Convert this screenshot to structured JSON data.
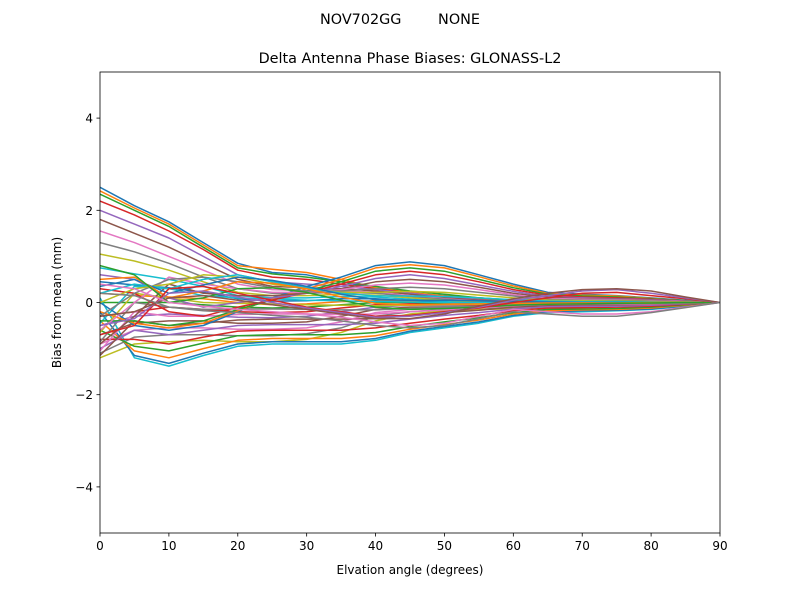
{
  "chart_data": {
    "type": "line",
    "suptitle": "NOV702GG        NONE",
    "title": "Delta Antenna Phase Biases: GLONASS-L2",
    "xlabel": "Elvation angle (degrees)",
    "ylabel": "Bias from mean (mm)",
    "xlim": [
      0,
      90
    ],
    "ylim": [
      -5,
      5
    ],
    "xticks": [
      0,
      10,
      20,
      30,
      40,
      50,
      60,
      70,
      80,
      90
    ],
    "yticks": [
      -4,
      -2,
      0,
      2,
      4
    ],
    "xtick_labels": [
      "0",
      "10",
      "20",
      "30",
      "40",
      "50",
      "60",
      "70",
      "80",
      "90"
    ],
    "ytick_labels": [
      "−4",
      "−2",
      "0",
      "2",
      "4"
    ],
    "grid": false,
    "legend": "none",
    "colors": [
      "#1f77b4",
      "#ff7f0e",
      "#2ca02c",
      "#d62728",
      "#9467bd",
      "#8c564b",
      "#e377c2",
      "#7f7f7f",
      "#bcbd22",
      "#17becf"
    ],
    "x": [
      0,
      5,
      10,
      15,
      20,
      25,
      30,
      35,
      40,
      45,
      50,
      55,
      60,
      65,
      70,
      75,
      80,
      85,
      90
    ],
    "series": [
      {
        "values": [
          2.5,
          2.1,
          1.75,
          1.3,
          0.85,
          0.65,
          0.6,
          0.45,
          0.3,
          0.2,
          0.15,
          0.1,
          0.05,
          0.05,
          0.1,
          0.12,
          0.08,
          0.04,
          0
        ]
      },
      {
        "values": [
          2.42,
          2.05,
          1.7,
          1.25,
          0.8,
          0.72,
          0.65,
          0.5,
          0.32,
          0.22,
          0.14,
          0.08,
          0.04,
          0.04,
          0.08,
          0.1,
          0.08,
          0.04,
          0
        ]
      },
      {
        "values": [
          2.35,
          2.0,
          1.65,
          1.2,
          0.75,
          0.62,
          0.55,
          0.45,
          0.35,
          0.25,
          0.18,
          0.1,
          0.05,
          0.04,
          0.06,
          0.08,
          0.06,
          0.03,
          0
        ]
      },
      {
        "values": [
          2.2,
          1.9,
          1.55,
          1.15,
          0.7,
          0.55,
          0.5,
          0.4,
          0.3,
          0.2,
          0.12,
          0.06,
          0.02,
          0.02,
          0.05,
          0.07,
          0.05,
          0.03,
          0
        ]
      },
      {
        "values": [
          2.0,
          1.7,
          1.4,
          1.0,
          0.6,
          0.45,
          0.4,
          0.35,
          0.28,
          0.2,
          0.12,
          0.06,
          0.02,
          0.0,
          0.03,
          0.05,
          0.04,
          0.02,
          0
        ]
      },
      {
        "values": [
          1.8,
          1.5,
          1.2,
          0.85,
          0.5,
          0.35,
          0.32,
          0.3,
          0.25,
          0.18,
          0.1,
          0.05,
          0.01,
          0.0,
          0.02,
          0.04,
          0.03,
          0.02,
          0
        ]
      },
      {
        "values": [
          1.55,
          1.3,
          1.0,
          0.7,
          0.4,
          0.28,
          0.26,
          0.26,
          0.22,
          0.15,
          0.08,
          0.03,
          0.0,
          -0.01,
          0.01,
          0.03,
          0.02,
          0.01,
          0
        ]
      },
      {
        "values": [
          1.3,
          1.1,
          0.85,
          0.55,
          0.3,
          0.2,
          0.2,
          0.22,
          0.2,
          0.13,
          0.07,
          0.02,
          -0.01,
          -0.02,
          0.0,
          0.02,
          0.02,
          0.01,
          0
        ]
      },
      {
        "values": [
          1.05,
          0.9,
          0.7,
          0.45,
          0.22,
          0.15,
          0.15,
          0.18,
          0.16,
          0.1,
          0.05,
          0.0,
          -0.02,
          -0.03,
          -0.01,
          0.01,
          0.01,
          0.0,
          0
        ]
      },
      {
        "values": [
          0.75,
          0.62,
          0.5,
          0.35,
          0.15,
          0.1,
          0.1,
          0.13,
          0.12,
          0.07,
          0.02,
          -0.02,
          -0.04,
          -0.04,
          -0.02,
          0.0,
          0.0,
          0.0,
          0
        ]
      },
      {
        "values": [
          0.45,
          0.38,
          0.32,
          0.22,
          0.08,
          0.03,
          0.04,
          0.08,
          0.08,
          0.04,
          0.0,
          -0.04,
          -0.05,
          -0.05,
          -0.03,
          -0.01,
          0.0,
          0.0,
          0
        ]
      },
      {
        "values": [
          0.2,
          0.15,
          0.12,
          0.08,
          0.0,
          -0.05,
          -0.03,
          0.02,
          0.04,
          0.02,
          -0.02,
          -0.05,
          -0.06,
          -0.06,
          -0.04,
          -0.02,
          -0.01,
          0.0,
          0
        ]
      },
      {
        "values": [
          0.0,
          0.0,
          0.0,
          -0.05,
          -0.1,
          -0.12,
          -0.1,
          -0.05,
          0.0,
          0.0,
          -0.03,
          -0.06,
          -0.07,
          -0.07,
          -0.05,
          -0.03,
          -0.02,
          -0.01,
          0
        ]
      },
      {
        "values": [
          -0.3,
          -0.2,
          -0.1,
          -0.15,
          -0.2,
          -0.22,
          -0.2,
          -0.12,
          -0.05,
          -0.03,
          -0.05,
          -0.07,
          -0.08,
          -0.08,
          -0.06,
          -0.04,
          -0.02,
          -0.01,
          0
        ]
      },
      {
        "values": [
          -0.5,
          -0.3,
          -0.25,
          -0.28,
          -0.32,
          -0.33,
          -0.3,
          -0.2,
          -0.1,
          -0.06,
          -0.07,
          -0.09,
          -0.1,
          -0.09,
          -0.07,
          -0.05,
          -0.03,
          -0.01,
          0
        ]
      },
      {
        "values": [
          -0.7,
          -0.45,
          -0.4,
          -0.4,
          -0.45,
          -0.45,
          -0.42,
          -0.3,
          -0.15,
          -0.1,
          -0.1,
          -0.11,
          -0.11,
          -0.1,
          -0.08,
          -0.06,
          -0.04,
          -0.02,
          0
        ]
      },
      {
        "values": [
          -0.9,
          -0.6,
          -0.55,
          -0.55,
          -0.58,
          -0.58,
          -0.55,
          -0.42,
          -0.22,
          -0.15,
          -0.12,
          -0.12,
          -0.12,
          -0.11,
          -0.09,
          -0.07,
          -0.05,
          -0.02,
          0
        ]
      },
      {
        "values": [
          -1.1,
          -0.75,
          -0.7,
          -0.7,
          -0.72,
          -0.72,
          -0.68,
          -0.55,
          -0.3,
          -0.2,
          -0.15,
          -0.13,
          -0.13,
          -0.12,
          -0.1,
          -0.08,
          -0.05,
          -0.02,
          0
        ]
      },
      {
        "values": [
          -1.2,
          -0.9,
          -0.85,
          -0.82,
          -0.85,
          -0.85,
          -0.8,
          -0.65,
          -0.4,
          -0.25,
          -0.18,
          -0.15,
          -0.14,
          -0.13,
          -0.11,
          -0.09,
          -0.06,
          -0.03,
          0
        ]
      },
      {
        "values": [
          0.1,
          -1.2,
          -1.38,
          -1.15,
          -0.95,
          -0.9,
          -0.9,
          -0.9,
          -0.82,
          -0.65,
          -0.55,
          -0.45,
          -0.3,
          -0.22,
          -0.2,
          -0.18,
          -0.15,
          -0.08,
          0
        ]
      },
      {
        "values": [
          -0.2,
          -1.15,
          -1.32,
          -1.1,
          -0.9,
          -0.85,
          -0.85,
          -0.85,
          -0.78,
          -0.62,
          -0.52,
          -0.42,
          -0.28,
          -0.2,
          -0.18,
          -0.17,
          -0.14,
          -0.07,
          0
        ]
      },
      {
        "values": [
          -0.4,
          -1.05,
          -1.2,
          -1.0,
          -0.82,
          -0.78,
          -0.78,
          -0.78,
          -0.72,
          -0.58,
          -0.48,
          -0.38,
          -0.25,
          -0.18,
          -0.16,
          -0.15,
          -0.12,
          -0.06,
          0
        ]
      },
      {
        "values": [
          -0.6,
          -0.95,
          -1.05,
          -0.88,
          -0.72,
          -0.7,
          -0.7,
          -0.7,
          -0.65,
          -0.52,
          -0.42,
          -0.33,
          -0.22,
          -0.15,
          -0.14,
          -0.13,
          -0.1,
          -0.05,
          0
        ]
      },
      {
        "values": [
          -0.8,
          -0.8,
          -0.9,
          -0.75,
          -0.62,
          -0.6,
          -0.6,
          -0.6,
          -0.55,
          -0.45,
          -0.36,
          -0.28,
          -0.18,
          -0.12,
          -0.11,
          -0.1,
          -0.08,
          -0.04,
          0
        ]
      },
      {
        "values": [
          -1.0,
          -0.6,
          -0.7,
          -0.6,
          -0.5,
          -0.48,
          -0.48,
          -0.48,
          -0.45,
          -0.36,
          -0.28,
          -0.22,
          -0.14,
          -0.09,
          -0.08,
          -0.08,
          -0.06,
          -0.03,
          0
        ]
      },
      {
        "values": [
          -1.15,
          -0.4,
          -0.5,
          -0.45,
          -0.38,
          -0.36,
          -0.36,
          -0.36,
          -0.35,
          -0.28,
          -0.22,
          -0.17,
          -0.1,
          -0.06,
          -0.05,
          -0.05,
          -0.04,
          -0.02,
          0
        ]
      },
      {
        "values": [
          -1.05,
          -0.2,
          -0.3,
          -0.3,
          -0.26,
          -0.25,
          -0.25,
          -0.26,
          -0.25,
          -0.2,
          -0.16,
          -0.12,
          -0.07,
          -0.04,
          -0.03,
          -0.03,
          -0.03,
          -0.01,
          0
        ]
      },
      {
        "values": [
          -0.85,
          0.0,
          -0.1,
          -0.15,
          -0.14,
          -0.14,
          -0.15,
          -0.16,
          -0.16,
          -0.13,
          -0.1,
          -0.08,
          -0.05,
          -0.02,
          -0.02,
          -0.02,
          -0.02,
          -0.01,
          0
        ]
      },
      {
        "values": [
          -0.65,
          0.2,
          0.1,
          0.0,
          -0.02,
          -0.03,
          -0.05,
          -0.06,
          -0.07,
          -0.06,
          -0.05,
          -0.04,
          -0.02,
          -0.01,
          -0.01,
          -0.01,
          -0.01,
          0.0,
          0
        ]
      },
      {
        "values": [
          -0.45,
          0.35,
          0.3,
          0.15,
          0.1,
          0.08,
          0.05,
          0.04,
          0.02,
          0.01,
          0.0,
          0.0,
          0.0,
          0.0,
          0.0,
          0.0,
          0.0,
          0.0,
          0
        ]
      },
      {
        "values": [
          0.0,
          -0.5,
          -0.6,
          -0.5,
          -0.2,
          0.1,
          0.35,
          0.55,
          0.8,
          0.88,
          0.8,
          0.6,
          0.4,
          0.22,
          0.18,
          0.15,
          0.1,
          0.05,
          0
        ]
      },
      {
        "values": [
          -0.2,
          -0.45,
          -0.55,
          -0.45,
          -0.18,
          0.08,
          0.3,
          0.5,
          0.75,
          0.82,
          0.75,
          0.56,
          0.36,
          0.2,
          0.16,
          0.14,
          0.09,
          0.04,
          0
        ]
      },
      {
        "values": [
          -0.4,
          -0.4,
          -0.5,
          -0.4,
          -0.15,
          0.05,
          0.25,
          0.45,
          0.68,
          0.75,
          0.68,
          0.5,
          0.32,
          0.18,
          0.14,
          0.12,
          0.08,
          0.04,
          0
        ]
      },
      {
        "values": [
          0.3,
          0.2,
          -0.2,
          -0.3,
          -0.1,
          0.05,
          0.22,
          0.4,
          0.6,
          0.68,
          0.6,
          0.45,
          0.28,
          0.16,
          0.12,
          0.1,
          0.07,
          0.03,
          0
        ]
      },
      {
        "values": [
          0.6,
          0.5,
          0.1,
          -0.1,
          0.0,
          0.1,
          0.2,
          0.35,
          0.52,
          0.6,
          0.52,
          0.38,
          0.24,
          0.13,
          0.1,
          0.08,
          0.06,
          0.03,
          0
        ]
      },
      {
        "values": [
          -0.9,
          -0.3,
          0.4,
          0.2,
          0.15,
          0.15,
          0.2,
          0.3,
          0.45,
          0.5,
          0.45,
          0.33,
          0.2,
          0.11,
          0.08,
          0.07,
          0.05,
          0.02,
          0
        ]
      },
      {
        "values": [
          -0.6,
          0.0,
          0.55,
          0.4,
          0.3,
          0.22,
          0.22,
          0.28,
          0.38,
          0.42,
          0.38,
          0.28,
          0.17,
          0.09,
          0.07,
          0.06,
          0.04,
          0.02,
          0
        ]
      },
      {
        "values": [
          -0.3,
          0.2,
          0.5,
          0.55,
          0.45,
          0.32,
          0.25,
          0.25,
          0.3,
          0.33,
          0.3,
          0.22,
          0.14,
          0.07,
          0.05,
          0.05,
          0.03,
          0.01,
          0
        ]
      },
      {
        "values": [
          0.0,
          0.3,
          0.4,
          0.6,
          0.55,
          0.4,
          0.3,
          0.22,
          0.22,
          0.24,
          0.22,
          0.16,
          0.1,
          0.05,
          0.04,
          0.03,
          0.02,
          0.01,
          0
        ]
      },
      {
        "values": [
          0.2,
          0.4,
          0.3,
          0.5,
          0.6,
          0.45,
          0.32,
          0.2,
          0.14,
          0.14,
          0.13,
          0.1,
          0.06,
          0.03,
          0.02,
          0.02,
          0.01,
          0.0,
          0
        ]
      },
      {
        "values": [
          0.35,
          0.5,
          0.2,
          0.38,
          0.55,
          0.48,
          0.35,
          0.18,
          0.06,
          0.05,
          0.05,
          0.04,
          0.02,
          0.01,
          0.0,
          0.0,
          0.0,
          0.0,
          0
        ]
      },
      {
        "values": [
          0.5,
          0.55,
          0.1,
          0.25,
          0.45,
          0.42,
          0.3,
          0.12,
          -0.02,
          -0.05,
          -0.04,
          -0.03,
          -0.02,
          -0.01,
          -0.01,
          -0.01,
          0.0,
          0.0,
          0
        ]
      },
      {
        "values": [
          0.8,
          0.6,
          0.0,
          0.1,
          0.3,
          0.32,
          0.22,
          0.05,
          -0.1,
          -0.15,
          -0.13,
          -0.1,
          -0.06,
          -0.04,
          -0.03,
          -0.02,
          -0.01,
          0.0,
          0
        ]
      },
      {
        "values": [
          -0.7,
          -0.5,
          0.3,
          0.35,
          0.2,
          0.05,
          -0.1,
          -0.2,
          -0.3,
          -0.28,
          -0.2,
          -0.12,
          0.0,
          0.1,
          0.2,
          0.22,
          0.15,
          0.08,
          0
        ]
      },
      {
        "values": [
          -0.5,
          -0.35,
          0.2,
          0.25,
          0.12,
          0.0,
          -0.12,
          -0.22,
          -0.32,
          -0.3,
          -0.22,
          -0.1,
          0.05,
          0.15,
          0.25,
          0.28,
          0.2,
          0.1,
          0
        ]
      },
      {
        "values": [
          -0.3,
          -0.2,
          0.1,
          0.15,
          0.05,
          -0.05,
          -0.15,
          -0.25,
          -0.35,
          -0.35,
          -0.25,
          -0.08,
          0.08,
          0.2,
          0.28,
          0.3,
          0.25,
          0.12,
          0
        ]
      },
      {
        "values": [
          0.4,
          0.3,
          0.0,
          -0.08,
          -0.15,
          -0.2,
          -0.25,
          -0.32,
          -0.42,
          -0.5,
          -0.45,
          -0.3,
          -0.15,
          -0.2,
          -0.25,
          -0.25,
          -0.2,
          -0.1,
          0
        ]
      },
      {
        "values": [
          0.2,
          0.15,
          -0.1,
          -0.18,
          -0.22,
          -0.28,
          -0.32,
          -0.4,
          -0.5,
          -0.55,
          -0.5,
          -0.35,
          -0.2,
          -0.25,
          -0.3,
          -0.3,
          -0.22,
          -0.11,
          0
        ]
      }
    ]
  }
}
